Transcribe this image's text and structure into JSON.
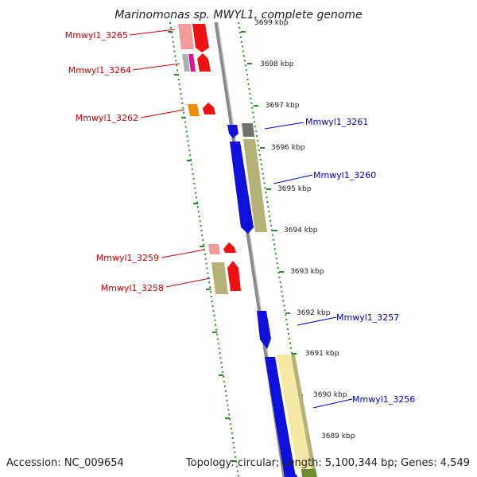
{
  "title": "Marinomonas sp. MWYL1, complete genome",
  "footer": {
    "accession": "Accession: NC_009654",
    "stats": "Topology: circular; Length: 5,100,344 bp; Genes: 4,549"
  },
  "colors": {
    "forward_label": "#cc0000",
    "reverse_label": "#0000cc",
    "backbone": "#808080",
    "tick": "#2a8a2a"
  },
  "ticks": [
    {
      "label": "3699 kbp"
    },
    {
      "label": "3698 kbp"
    },
    {
      "label": "3697 kbp"
    },
    {
      "label": "3696 kbp"
    },
    {
      "label": "3695 kbp"
    },
    {
      "label": "3694 kbp"
    },
    {
      "label": "3693 kbp"
    },
    {
      "label": "3692 kbp"
    },
    {
      "label": "3691 kbp"
    },
    {
      "label": "3690 kbp"
    },
    {
      "label": "3689 kbp"
    }
  ],
  "labels": [
    {
      "text": "Mmwyl1_3265",
      "strand": "forward"
    },
    {
      "text": "Mmwyl1_3264",
      "strand": "forward"
    },
    {
      "text": "Mmwyl1_3262",
      "strand": "forward"
    },
    {
      "text": "Mmwyl1_3261",
      "strand": "reverse"
    },
    {
      "text": "Mmwyl1_3260",
      "strand": "reverse"
    },
    {
      "text": "Mmwyl1_3259",
      "strand": "forward"
    },
    {
      "text": "Mmwyl1_3258",
      "strand": "forward"
    },
    {
      "text": "Mmwyl1_3257",
      "strand": "reverse"
    },
    {
      "text": "Mmwyl1_3256",
      "strand": "reverse"
    }
  ]
}
